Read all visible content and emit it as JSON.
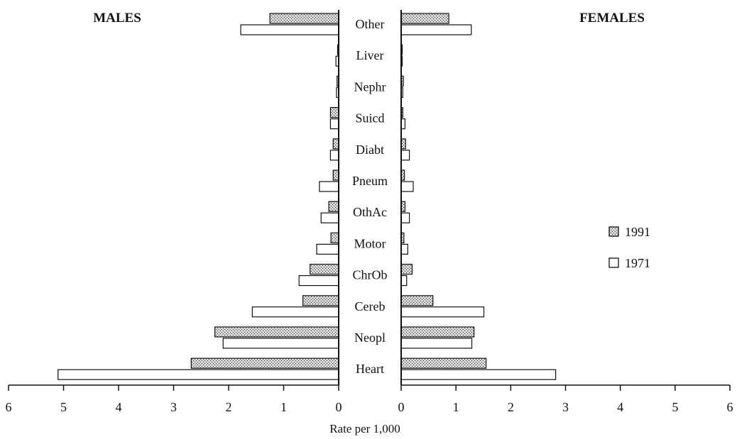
{
  "chart_data": {
    "type": "bar",
    "layout": "back-to-back horizontal",
    "left_panel_title": "MALES",
    "right_panel_title": "FEMALES",
    "xlabel": "Rate per 1,000",
    "xlim": [
      0,
      6
    ],
    "x_ticks": [
      "6",
      "5",
      "4",
      "3",
      "2",
      "1",
      "0",
      "0",
      "1",
      "2",
      "3",
      "4",
      "5",
      "6"
    ],
    "legend_position": "right",
    "categories": [
      "Other",
      "Liver",
      "Nephr",
      "Suicd",
      "Diabt",
      "Pneum",
      "OthAc",
      "Motor",
      "ChrOb",
      "Cereb",
      "Neopl",
      "Heart"
    ],
    "series": [
      {
        "name": "1991",
        "fill": "hatched",
        "males": [
          1.25,
          0.02,
          0.03,
          0.15,
          0.1,
          0.1,
          0.18,
          0.14,
          0.52,
          0.65,
          2.25,
          2.68
        ],
        "females": [
          0.87,
          0.01,
          0.04,
          0.03,
          0.08,
          0.06,
          0.07,
          0.05,
          0.2,
          0.58,
          1.33,
          1.55
        ]
      },
      {
        "name": "1971",
        "fill": "open",
        "males": [
          1.78,
          0.05,
          0.04,
          0.15,
          0.15,
          0.35,
          0.32,
          0.4,
          0.72,
          1.57,
          2.1,
          5.1
        ],
        "females": [
          1.28,
          0.01,
          0.03,
          0.07,
          0.15,
          0.22,
          0.15,
          0.12,
          0.1,
          1.51,
          1.29,
          2.82
        ]
      }
    ]
  },
  "legend": {
    "items": [
      {
        "label": "1991",
        "fill": "hatched"
      },
      {
        "label": "1971",
        "fill": "open"
      }
    ]
  },
  "colors": {
    "ink": "#111111",
    "hatch_bg": "#d8d8d8",
    "open_fill": "#ffffff"
  }
}
